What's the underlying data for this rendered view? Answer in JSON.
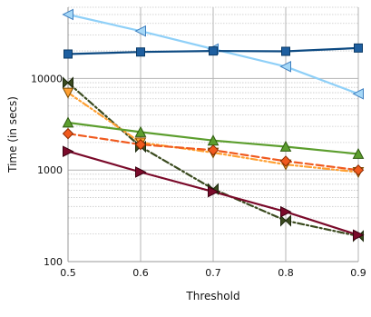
{
  "chart_data": {
    "type": "line",
    "title": "",
    "xlabel": "Threshold",
    "ylabel": "Time (in secs)",
    "y_scale": "log",
    "xlim": [
      0.5,
      0.9
    ],
    "ylim": [
      100,
      60000
    ],
    "grid": true,
    "legend": "none",
    "x": [
      0.5,
      0.6,
      0.7,
      0.8,
      0.9
    ],
    "x_tick_labels": [
      "0.5",
      "0.6",
      "0.7",
      "0.8",
      "0.9"
    ],
    "y_ticks": [
      100,
      1000,
      10000
    ],
    "y_tick_labels": [
      "100",
      "1000",
      "10000"
    ],
    "series": [
      {
        "values": [
          50000,
          33000,
          21000,
          13500,
          6800
        ],
        "color": "#8fd0f8",
        "line_style": "solid",
        "marker": "triangle-left",
        "marker_fill": "#a6d8f7",
        "marker_edge": "#3f7fbf"
      },
      {
        "values": [
          18500,
          19500,
          20000,
          19800,
          21500
        ],
        "color": "#0d4a82",
        "line_style": "solid",
        "marker": "square",
        "marker_fill": "#1e5fa0",
        "marker_edge": "#0a3a66"
      },
      {
        "values": [
          9000,
          1800,
          620,
          280,
          190
        ],
        "color": "#3a4a1e",
        "line_style": "dash-dot",
        "marker": "bowtie",
        "marker_fill": "#3a4a1e",
        "marker_edge": "#1e2a0e"
      },
      {
        "values": [
          7000,
          2000,
          1550,
          1150,
          950
        ],
        "color": "#ffa032",
        "line_style": "dash-dot-dot",
        "marker": "triangle-down",
        "marker_fill": "#ffa032",
        "marker_edge": "#7a4a00"
      },
      {
        "values": [
          3300,
          2600,
          2100,
          1800,
          1500
        ],
        "color": "#5c9e2e",
        "line_style": "solid",
        "marker": "triangle-up",
        "marker_fill": "#5c9e2e",
        "marker_edge": "#2e5a10"
      },
      {
        "values": [
          2500,
          1900,
          1650,
          1250,
          1000
        ],
        "color": "#f05a1e",
        "line_style": "dashed",
        "marker": "diamond",
        "marker_fill": "#f05a1e",
        "marker_edge": "#8a2a00"
      },
      {
        "values": [
          1600,
          950,
          580,
          350,
          195
        ],
        "color": "#7a0a2a",
        "line_style": "solid",
        "marker": "triangle-right",
        "marker_fill": "#7a0a2a",
        "marker_edge": "#3a0010"
      }
    ]
  }
}
